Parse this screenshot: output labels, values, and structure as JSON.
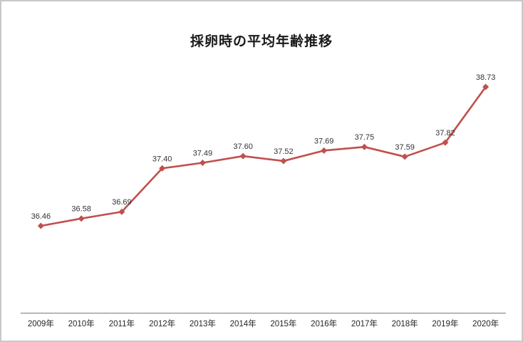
{
  "chart": {
    "title": "採卵時の平均年齢推移"
  },
  "chart_data": {
    "type": "line",
    "title": "採卵時の平均年齢推移",
    "categories": [
      "2009年",
      "2010年",
      "2011年",
      "2012年",
      "2013年",
      "2014年",
      "2015年",
      "2016年",
      "2017年",
      "2018年",
      "2019年",
      "2020年"
    ],
    "values": [
      36.46,
      36.58,
      36.69,
      37.4,
      37.49,
      37.6,
      37.52,
      37.69,
      37.75,
      37.59,
      37.82,
      38.73
    ],
    "point_labels": [
      "36.46",
      "36.58",
      "36.69",
      "37.40",
      "37.49",
      "37.60",
      "37.52",
      "37.69",
      "37.75",
      "37.59",
      "37.82",
      "38.73"
    ],
    "xlabel": "",
    "ylabel": "",
    "ylim": [
      35.0,
      39.5
    ],
    "grid": false,
    "legend": false,
    "y_axis_visible": false,
    "x_axis_line_visible": true,
    "marker": "diamond"
  },
  "colors": {
    "line": "#C0504D",
    "marker": "#C0504D",
    "axis_line": "#8E8E8E",
    "data_label_text": "#333333",
    "axis_label_text": "#262626",
    "title_text": "#1A1A1A",
    "frame_border": "#C8C8C8",
    "background": "#FFFFFF"
  }
}
